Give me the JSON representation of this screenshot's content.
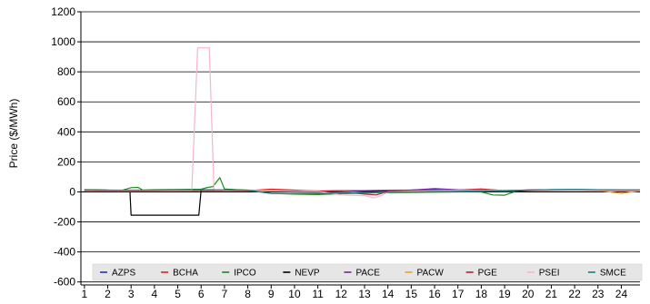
{
  "chart_data": {
    "type": "line",
    "ylabel": "Price ($/MWh)",
    "xlabel": "",
    "x_ticks": [
      1,
      2,
      3,
      4,
      5,
      6,
      7,
      8,
      9,
      10,
      11,
      12,
      13,
      14,
      15,
      16,
      17,
      18,
      19,
      20,
      21,
      22,
      23,
      24
    ],
    "y_ticks": [
      -600,
      -400,
      -200,
      0,
      200,
      400,
      600,
      800,
      1000,
      1200
    ],
    "xlim": [
      0.85,
      24.8
    ],
    "ylim": [
      -620,
      1200
    ],
    "grid": "horizontal",
    "legend_position": "bottom",
    "series": [
      {
        "name": "AZPS",
        "color": "#2b2bd0",
        "points": [
          [
            1,
            14
          ],
          [
            2,
            12
          ],
          [
            3,
            10
          ],
          [
            4,
            12
          ],
          [
            5,
            13
          ],
          [
            6,
            14
          ],
          [
            7,
            12
          ],
          [
            8,
            10
          ],
          [
            9,
            5
          ],
          [
            10,
            4
          ],
          [
            11,
            4
          ],
          [
            12,
            6
          ],
          [
            13,
            8
          ],
          [
            14,
            10
          ],
          [
            15,
            12
          ],
          [
            16,
            14
          ],
          [
            17,
            12
          ],
          [
            18,
            10
          ],
          [
            19,
            9
          ],
          [
            20,
            12
          ],
          [
            21,
            15
          ],
          [
            22,
            16
          ],
          [
            23,
            14
          ],
          [
            24,
            12
          ],
          [
            24.8,
            12
          ]
        ]
      },
      {
        "name": "BCHA",
        "color": "#e02020",
        "points": [
          [
            1,
            8
          ],
          [
            2,
            6
          ],
          [
            3,
            6
          ],
          [
            4,
            8
          ],
          [
            5,
            9
          ],
          [
            6,
            10
          ],
          [
            7,
            10
          ],
          [
            8,
            8
          ],
          [
            9,
            18
          ],
          [
            10,
            12
          ],
          [
            11,
            4
          ],
          [
            12,
            8
          ],
          [
            13,
            2
          ],
          [
            14,
            3
          ],
          [
            15,
            5
          ],
          [
            16,
            10
          ],
          [
            17,
            12
          ],
          [
            18,
            20
          ],
          [
            19,
            8
          ],
          [
            20,
            10
          ],
          [
            21,
            12
          ],
          [
            22,
            12
          ],
          [
            23,
            10
          ],
          [
            24,
            9
          ],
          [
            24.8,
            8
          ]
        ]
      },
      {
        "name": "IPCO",
        "color": "#1a8a1a",
        "points": [
          [
            1,
            15
          ],
          [
            2,
            12
          ],
          [
            2.5,
            5
          ],
          [
            3,
            28
          ],
          [
            3.3,
            30
          ],
          [
            3.5,
            12
          ],
          [
            4,
            14
          ],
          [
            5,
            16
          ],
          [
            6,
            18
          ],
          [
            6.3,
            30
          ],
          [
            6.5,
            35
          ],
          [
            6.8,
            95
          ],
          [
            7,
            20
          ],
          [
            7.5,
            15
          ],
          [
            8,
            12
          ],
          [
            9,
            -10
          ],
          [
            10,
            -15
          ],
          [
            11,
            -18
          ],
          [
            12,
            -12
          ],
          [
            13,
            -8
          ],
          [
            14,
            -5
          ],
          [
            15,
            -3
          ],
          [
            16,
            -2
          ],
          [
            17,
            0
          ],
          [
            18,
            0
          ],
          [
            18.5,
            -20
          ],
          [
            19,
            -22
          ],
          [
            19.5,
            5
          ],
          [
            20,
            10
          ],
          [
            21,
            14
          ],
          [
            22,
            15
          ],
          [
            23,
            14
          ],
          [
            24,
            12
          ],
          [
            24.8,
            12
          ]
        ]
      },
      {
        "name": "NEVP",
        "color": "#000000",
        "points": [
          [
            1,
            10
          ],
          [
            2,
            8
          ],
          [
            2.95,
            8
          ],
          [
            3,
            -155
          ],
          [
            5.9,
            -155
          ],
          [
            6,
            10
          ],
          [
            7,
            12
          ],
          [
            8,
            10
          ],
          [
            9,
            3
          ],
          [
            10,
            0
          ],
          [
            11,
            -2
          ],
          [
            12,
            0
          ],
          [
            13,
            2
          ],
          [
            14,
            4
          ],
          [
            15,
            5
          ],
          [
            16,
            6
          ],
          [
            17,
            6
          ],
          [
            18,
            5
          ],
          [
            19,
            3
          ],
          [
            20,
            8
          ],
          [
            21,
            12
          ],
          [
            22,
            13
          ],
          [
            23,
            12
          ],
          [
            24,
            10
          ],
          [
            24.8,
            10
          ]
        ]
      },
      {
        "name": "PACE",
        "color": "#7a1f9a",
        "points": [
          [
            1,
            12
          ],
          [
            2,
            10
          ],
          [
            3,
            10
          ],
          [
            4,
            11
          ],
          [
            5,
            12
          ],
          [
            6,
            13
          ],
          [
            7,
            12
          ],
          [
            8,
            10
          ],
          [
            9,
            8
          ],
          [
            10,
            6
          ],
          [
            11,
            6
          ],
          [
            12,
            8
          ],
          [
            13,
            8
          ],
          [
            14,
            10
          ],
          [
            15,
            12
          ],
          [
            16,
            22
          ],
          [
            17,
            14
          ],
          [
            18,
            12
          ],
          [
            19,
            10
          ],
          [
            20,
            12
          ],
          [
            21,
            14
          ],
          [
            22,
            14
          ],
          [
            23,
            13
          ],
          [
            24,
            12
          ],
          [
            24.8,
            12
          ]
        ]
      },
      {
        "name": "PACW",
        "color": "#f0a020",
        "points": [
          [
            1,
            10
          ],
          [
            2,
            8
          ],
          [
            3,
            8
          ],
          [
            4,
            9
          ],
          [
            5,
            10
          ],
          [
            6,
            11
          ],
          [
            7,
            10
          ],
          [
            8,
            9
          ],
          [
            9,
            6
          ],
          [
            10,
            4
          ],
          [
            11,
            2
          ],
          [
            12,
            4
          ],
          [
            13,
            -5
          ],
          [
            14,
            0
          ],
          [
            15,
            5
          ],
          [
            16,
            8
          ],
          [
            17,
            10
          ],
          [
            18,
            10
          ],
          [
            19,
            8
          ],
          [
            20,
            10
          ],
          [
            21,
            12
          ],
          [
            22,
            12
          ],
          [
            23,
            10
          ],
          [
            24,
            -10
          ],
          [
            24.8,
            8
          ]
        ]
      },
      {
        "name": "PGE",
        "color": "#c01838",
        "points": [
          [
            1,
            10
          ],
          [
            2,
            8
          ],
          [
            3,
            8
          ],
          [
            4,
            9
          ],
          [
            5,
            10
          ],
          [
            6,
            11
          ],
          [
            7,
            10
          ],
          [
            8,
            9
          ],
          [
            9,
            10
          ],
          [
            10,
            8
          ],
          [
            11,
            6
          ],
          [
            12,
            2
          ],
          [
            13,
            -15
          ],
          [
            13.5,
            -20
          ],
          [
            14,
            2
          ],
          [
            15,
            5
          ],
          [
            16,
            8
          ],
          [
            17,
            10
          ],
          [
            18,
            15
          ],
          [
            19,
            10
          ],
          [
            20,
            12
          ],
          [
            21,
            13
          ],
          [
            22,
            13
          ],
          [
            23,
            12
          ],
          [
            24,
            10
          ],
          [
            24.8,
            10
          ]
        ]
      },
      {
        "name": "PSEI",
        "color": "#f7b5c8",
        "points": [
          [
            1,
            10
          ],
          [
            2,
            8
          ],
          [
            3,
            8
          ],
          [
            4,
            9
          ],
          [
            5,
            10
          ],
          [
            5.6,
            12
          ],
          [
            5.85,
            960
          ],
          [
            6.35,
            960
          ],
          [
            6.55,
            15
          ],
          [
            7,
            12
          ],
          [
            8,
            10
          ],
          [
            9,
            8
          ],
          [
            10,
            6
          ],
          [
            11,
            4
          ],
          [
            12,
            -20
          ],
          [
            13,
            -25
          ],
          [
            13.4,
            -40
          ],
          [
            13.8,
            -20
          ],
          [
            14,
            0
          ],
          [
            15,
            5
          ],
          [
            16,
            8
          ],
          [
            17,
            10
          ],
          [
            18,
            10
          ],
          [
            19,
            8
          ],
          [
            20,
            10
          ],
          [
            21,
            12
          ],
          [
            22,
            12
          ],
          [
            23,
            10
          ],
          [
            24,
            9
          ],
          [
            24.8,
            8
          ]
        ]
      },
      {
        "name": "SMCE",
        "color": "#1a8080",
        "points": [
          [
            1,
            13
          ],
          [
            2,
            11
          ],
          [
            3,
            11
          ],
          [
            4,
            12
          ],
          [
            5,
            13
          ],
          [
            6,
            14
          ],
          [
            7,
            13
          ],
          [
            8,
            11
          ],
          [
            9,
            -10
          ],
          [
            10,
            -12
          ],
          [
            11,
            -12
          ],
          [
            12,
            -8
          ],
          [
            13,
            -5
          ],
          [
            14,
            -2
          ],
          [
            15,
            0
          ],
          [
            16,
            2
          ],
          [
            17,
            4
          ],
          [
            18,
            6
          ],
          [
            19,
            5
          ],
          [
            20,
            12
          ],
          [
            21,
            15
          ],
          [
            22,
            16
          ],
          [
            23,
            14
          ],
          [
            24,
            13
          ],
          [
            24.8,
            13
          ]
        ]
      }
    ]
  }
}
